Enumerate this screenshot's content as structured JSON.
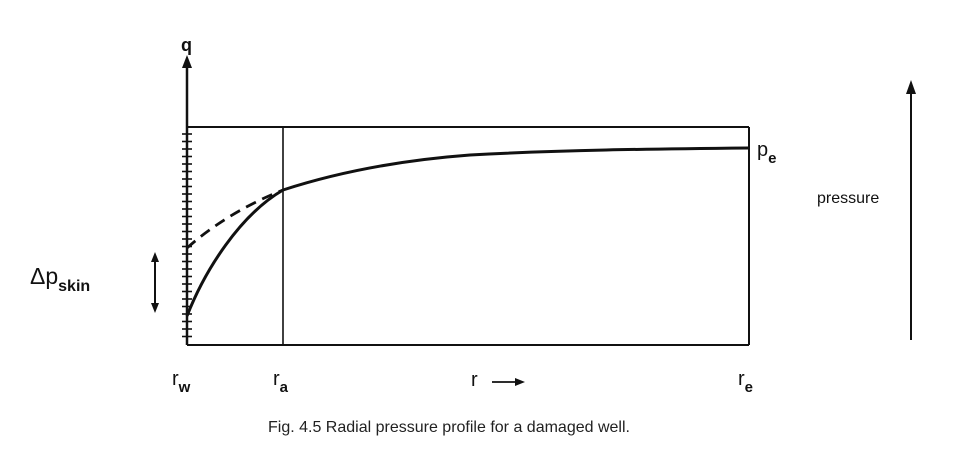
{
  "diagram": {
    "axis_label_q": "q",
    "label_pe": {
      "main": "p",
      "sub": "e"
    },
    "label_pressure": "pressure",
    "label_dp_skin": {
      "main": "Δp",
      "sub": "skin"
    },
    "label_rw": {
      "main": "r",
      "sub": "w"
    },
    "label_ra": {
      "main": "r",
      "sub": "a"
    },
    "label_r": "r",
    "label_re": {
      "main": "r",
      "sub": "e"
    },
    "caption": "Fig. 4.5  Radial pressure profile for a damaged well."
  }
}
